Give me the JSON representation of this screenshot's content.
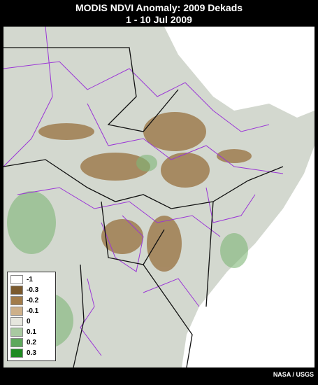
{
  "header": {
    "title": "MODIS NDVI Anomaly: 2009 Dekads",
    "subtitle": "1 - 10 Jul 2009"
  },
  "legend": {
    "items": [
      {
        "label": "-1",
        "color": "#ffffff"
      },
      {
        "label": "-0.3",
        "color": "#7a5a2e"
      },
      {
        "label": "-0.2",
        "color": "#a27c4a"
      },
      {
        "label": "-0.1",
        "color": "#cdb08a"
      },
      {
        "label": "0",
        "color": "#e6e6de"
      },
      {
        "label": "0.1",
        "color": "#a9c9a1"
      },
      {
        "label": "0.2",
        "color": "#5ea85c"
      },
      {
        "label": "0.3",
        "color": "#1f8a22"
      }
    ]
  },
  "credit": "NASA / USGS"
}
